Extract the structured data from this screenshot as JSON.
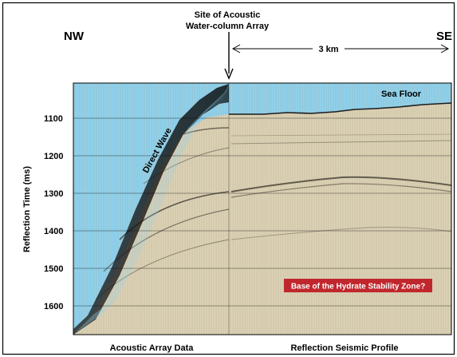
{
  "labels": {
    "direction_left": "NW",
    "direction_right": "SE",
    "site_line1": "Site of Acoustic",
    "site_line2": "Water-column Array",
    "scale": "3 km",
    "sea_floor": "Sea Floor",
    "direct_wave": "Direct Wave",
    "ylabel": "Reflection Time (ms)",
    "bsz_question": "Base of the Hydrate Stability Zone?",
    "bottom_left": "Acoustic Array Data",
    "bottom_right": "Reflection Seismic Profile"
  },
  "y_ticks": [
    "1100",
    "1200",
    "1300",
    "1400",
    "1500",
    "1600"
  ],
  "colors": {
    "water": "#8fd3ef",
    "sediment": "#ddd2b6",
    "bsz_box": "#c0272d",
    "bsz_text": "#ffffff",
    "ink": "#000000"
  }
}
